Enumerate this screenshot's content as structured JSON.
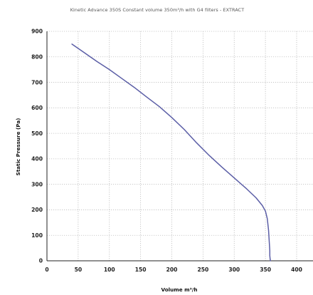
{
  "chart_data": {
    "type": "line",
    "title": "Kinetic Advance 350S   Constant volume 350m³/h with G4 filters - EXTRACT",
    "xlabel": "Volume m³/h",
    "ylabel": "Static Pressure (Pa)",
    "xlim": [
      0,
      400
    ],
    "ylim": [
      0,
      900
    ],
    "x_ticks": [
      0,
      50,
      100,
      150,
      200,
      250,
      300,
      350,
      400
    ],
    "y_ticks": [
      0,
      100,
      200,
      300,
      400,
      500,
      600,
      700,
      800,
      900
    ],
    "x_tick_labels": [
      "0",
      "50",
      "100",
      "150",
      "200",
      "250",
      "300",
      "350",
      "400"
    ],
    "y_tick_labels": [
      "0",
      "100",
      "200",
      "300",
      "400",
      "500",
      "600",
      "700",
      "800",
      "900"
    ],
    "grid": true,
    "series": [
      {
        "color": "#5b5ea6",
        "x": [
          40,
          60,
          80,
          100,
          120,
          140,
          160,
          180,
          200,
          220,
          240,
          260,
          280,
          300,
          320,
          335,
          345,
          350,
          353,
          355,
          356,
          357,
          357,
          357.5,
          358
        ],
        "y": [
          850,
          816,
          782,
          750,
          715,
          680,
          642,
          605,
          562,
          515,
          462,
          413,
          368,
          325,
          282,
          247,
          217,
          195,
          165,
          120,
          80,
          40,
          20,
          8,
          0
        ]
      }
    ]
  }
}
